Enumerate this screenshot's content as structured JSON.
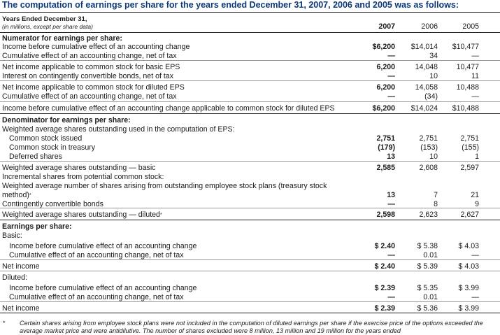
{
  "title": "The computation of earnings per share for the years ended December 31, 2007, 2006 and 2005 was as follows:",
  "header": {
    "label1": "Years Ended December 31,",
    "label2": "(in millions, except per share data)",
    "y1": "2007",
    "y2": "2006",
    "y3": "2005"
  },
  "rows": [
    {
      "label": "Numerator for earnings per share:",
      "bold": true
    },
    {
      "label": "Income before cumulative effect of an accounting change",
      "v1": "$6,200",
      "v2": "$14,014",
      "v3": "$10,477"
    },
    {
      "label": "Cumulative effect of an accounting change, net of tax",
      "v1": "—",
      "v2": "34",
      "v3": "—"
    },
    {
      "label": "Net income applicable to common stock for basic EPS",
      "v1": "6,200",
      "v2": "14,048",
      "v3": "10,477"
    },
    {
      "label": "Interest on contingently convertible bonds, net of tax",
      "v1": "—",
      "v2": "10",
      "v3": "11"
    },
    {
      "label": "Net income applicable to common stock for diluted EPS",
      "v1": "6,200",
      "v2": "14,058",
      "v3": "10,488"
    },
    {
      "label": "Cumulative effect of an accounting change, net of tax",
      "v1": "—",
      "v2": "(34)",
      "v3": "—"
    },
    {
      "label": "Income before cumulative effect of an accounting change applicable to common stock for diluted EPS",
      "v1": "$6,200",
      "v2": "$14,024",
      "v3": "$10,488"
    },
    {
      "label": "Denominator for earnings per share:",
      "bold": true
    },
    {
      "label": "Weighted average shares outstanding used in the computation of EPS:"
    },
    {
      "label": "Common stock issued",
      "indent": true,
      "v1": "2,751",
      "v2": "2,751",
      "v3": "2,751"
    },
    {
      "label": "Common stock in treasury",
      "indent": true,
      "v1": "(179)",
      "v2": "(153)",
      "v3": "(155)"
    },
    {
      "label": "Deferred shares",
      "indent": true,
      "v1": "13",
      "v2": "10",
      "v3": "1"
    },
    {
      "label": "Weighted average shares outstanding — basic",
      "v1": "2,585",
      "v2": "2,608",
      "v3": "2,597"
    },
    {
      "label": "Incremental shares from potential common stock:"
    },
    {
      "label": "Weighted average number of shares arising from outstanding employee stock plans (treasury stock"
    },
    {
      "label": "method)",
      "star": true,
      "v1": "13",
      "v2": "7",
      "v3": "21"
    },
    {
      "label": "Contingently convertible bonds",
      "v1": "—",
      "v2": "8",
      "v3": "9"
    },
    {
      "label": "Weighted average shares outstanding — diluted",
      "star": true,
      "v1": "2,598",
      "v2": "2,623",
      "v3": "2,627"
    },
    {
      "label": "Earnings per share:",
      "bold": true
    },
    {
      "label": "Basic:"
    },
    {
      "label": "Income before cumulative effect of an accounting change",
      "indent": true,
      "v1": "$ 2.40",
      "v2": "$ 5.38",
      "v3": "$ 4.03"
    },
    {
      "label": "Cumulative effect of an accounting change, net of tax",
      "indent": true,
      "v1": "—",
      "v2": "0.01",
      "v3": "—"
    },
    {
      "label": "Net income",
      "v1": "$ 2.40",
      "v2": "$ 5.39",
      "v3": "$ 4.03"
    },
    {
      "label": "Diluted:"
    },
    {
      "label": "Income before cumulative effect of an accounting change",
      "indent": true,
      "v1": "$ 2.39",
      "v2": "$ 5.35",
      "v3": "$ 3.99"
    },
    {
      "label": "Cumulative effect of an accounting change, net of tax",
      "indent": true,
      "v1": "—",
      "v2": "0.01",
      "v3": "—"
    },
    {
      "label": "Net income",
      "v1": "$ 2.39",
      "v2": "$ 5.36",
      "v3": "$ 3.99"
    }
  ],
  "star": "*",
  "footnote": "Certain shares arising from employee stock plans were not included in the computation of diluted earnings per share if the exercise price of the options exceeded the average market price and were antidilutive. The number of shares excluded were 8 million, 13 million and 19 million for the years ended"
}
